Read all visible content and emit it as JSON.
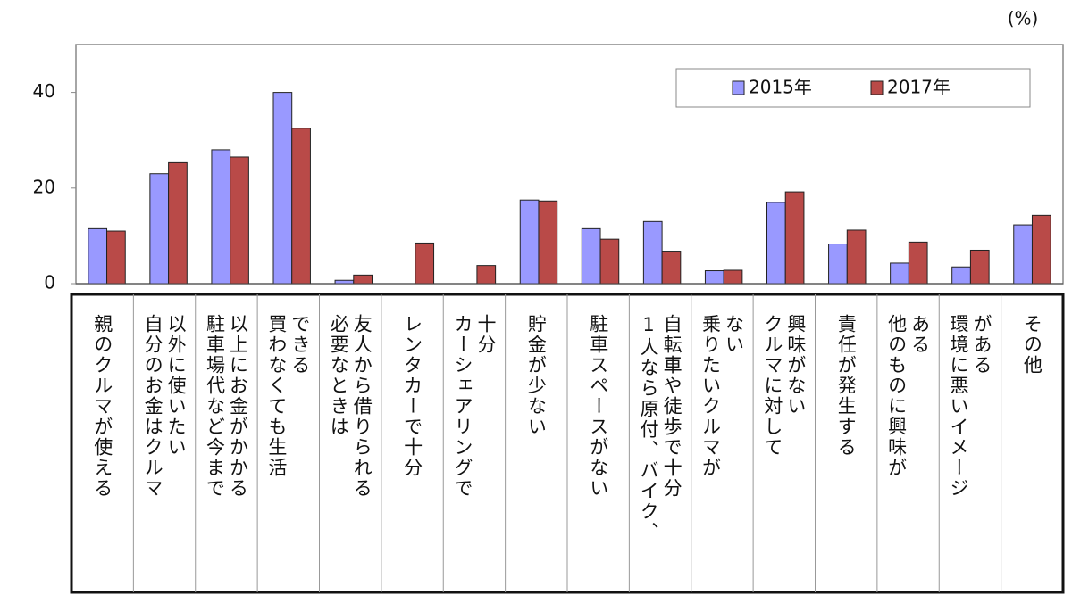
{
  "chart_data": {
    "type": "bar",
    "unit": "(%)",
    "categories": [
      "親のクルマが使える",
      "自分のお金はクルマ\n以外に使いたい",
      "駐車場代など今まで\n以上にお金がかかる",
      "買わなくても生活\nできる",
      "必要なときは\n友人から借りられる",
      "レンタカーで十分",
      "カーシェアリングで\n十分",
      "貯金が少ない",
      "駐車スペースがない",
      "1人なら原付、バイク、\n自転車や徒歩で十分",
      "乗りたいクルマが\nない",
      "クルマに対して\n興味がない",
      "責任が発生する",
      "他のものに興味が\nある",
      "環境に悪いイメージ\nがある",
      "その他"
    ],
    "series": [
      {
        "name": "2015年",
        "color": "#9999ff",
        "values": [
          11.5,
          23,
          28,
          40,
          0.7,
          null,
          null,
          17.5,
          11.5,
          13,
          2.7,
          17,
          8.3,
          4.3,
          3.5,
          12.3
        ]
      },
      {
        "name": "2017年",
        "color": "#b94a48",
        "values": [
          11,
          25.3,
          26.5,
          32.5,
          1.8,
          8.5,
          3.8,
          17.3,
          9.3,
          6.8,
          2.8,
          19.2,
          11.2,
          8.7,
          7,
          14.3
        ]
      }
    ],
    "ylim": [
      0,
      50
    ],
    "yticks": [
      0,
      20,
      40
    ],
    "grid": false,
    "legend": "top-right"
  }
}
